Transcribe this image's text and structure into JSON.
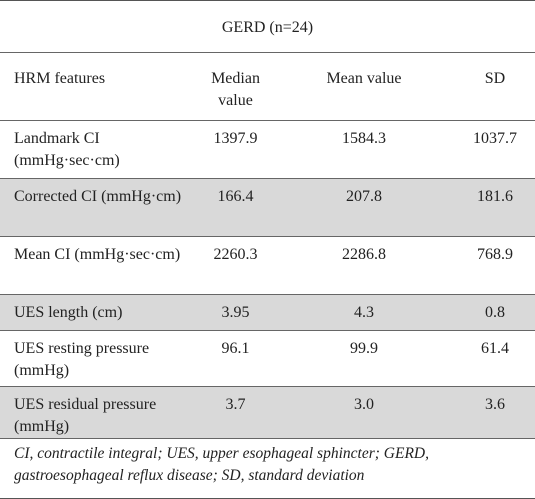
{
  "table": {
    "title": "GERD (n=24)",
    "columns": [
      "HRM features",
      "Median value",
      "Mean value",
      "SD"
    ],
    "rows": [
      {
        "feature": "Landmark CI (mmHg·sec·cm)",
        "median": "1397.9",
        "mean": "1584.3",
        "sd": "1037.7"
      },
      {
        "feature": "Corrected CI (mmHg·cm)",
        "median": "166.4",
        "mean": "207.8",
        "sd": "181.6"
      },
      {
        "feature": "Mean CI (mmHg·sec·cm)",
        "median": "2260.3",
        "mean": "2286.8",
        "sd": "768.9"
      },
      {
        "feature": "UES length (cm)",
        "median": "3.95",
        "mean": "4.3",
        "sd": "0.8"
      },
      {
        "feature": "UES resting pressure (mmHg)",
        "median": "96.1",
        "mean": "99.9",
        "sd": "61.4"
      },
      {
        "feature": "UES residual pressure (mmHg)",
        "median": "3.7",
        "mean": "3.0",
        "sd": "3.6"
      }
    ],
    "footnote": "CI, contractile integral; UES, upper esophageal sphincter; GERD, gastroesophageal reflux disease; SD, standard deviation"
  }
}
